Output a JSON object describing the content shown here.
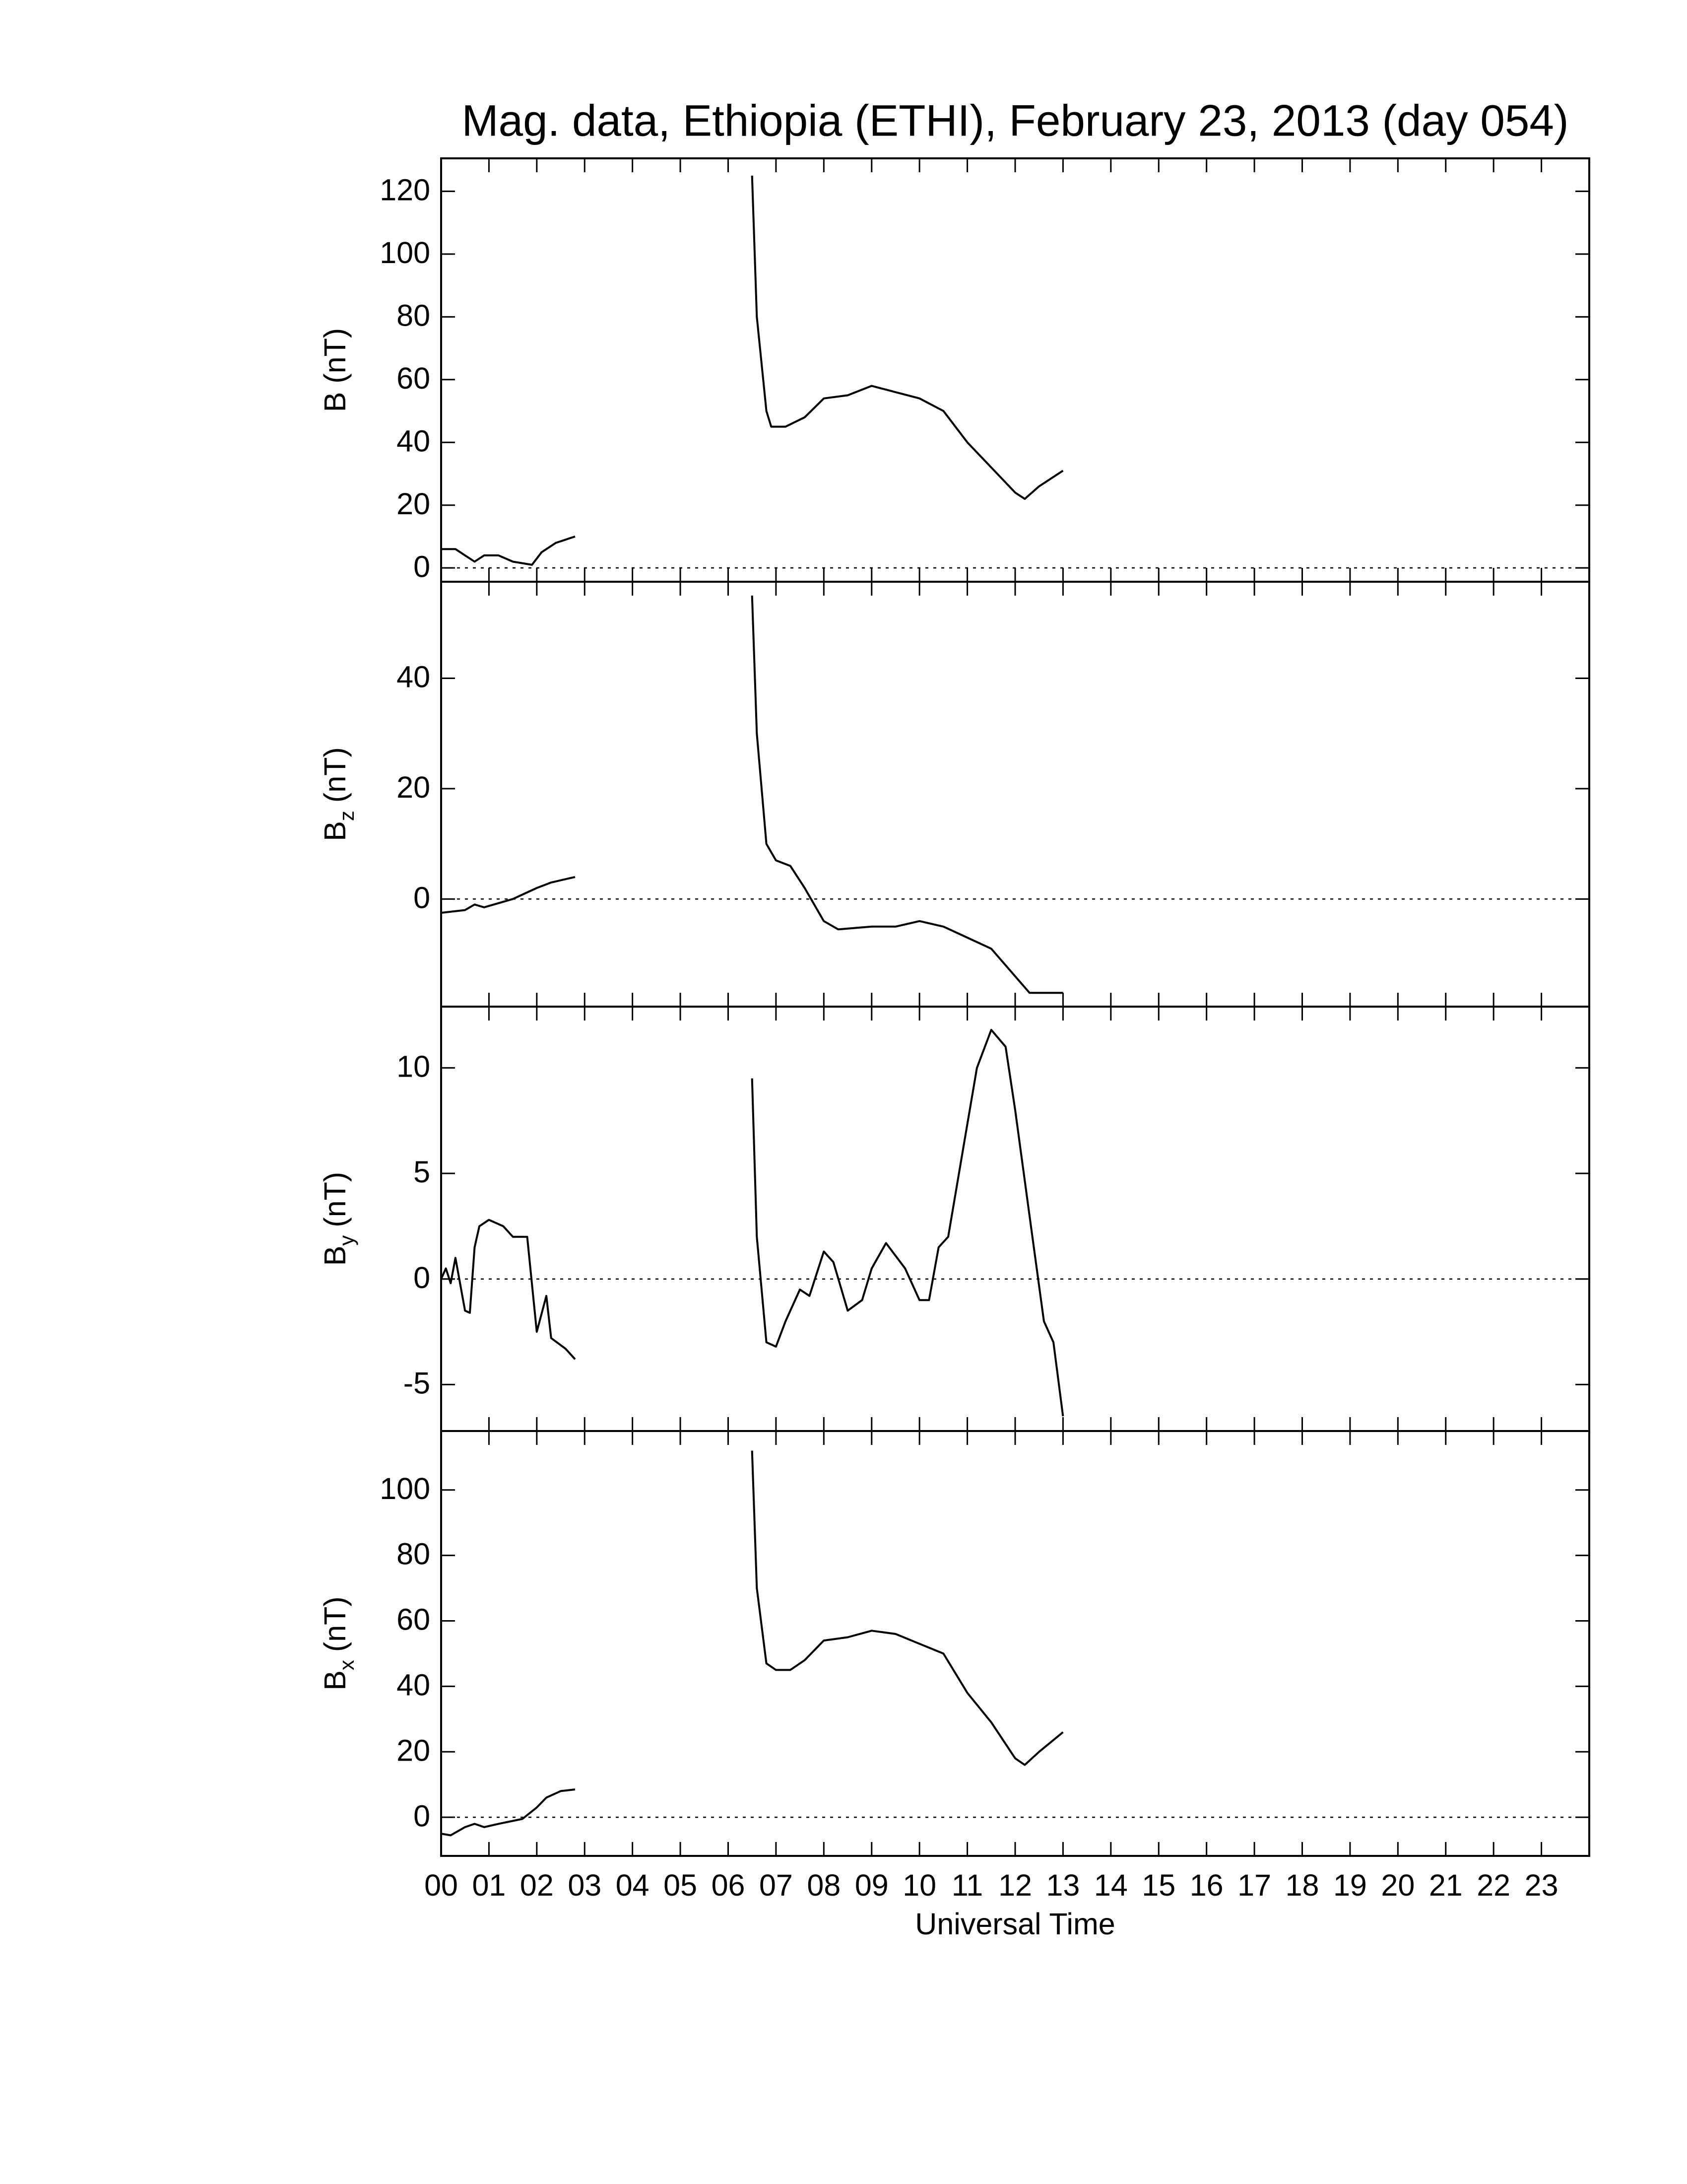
{
  "chart_data": [
    {
      "type": "line",
      "title": "Mag. data, Ethiopia (ETHI), February 23, 2013 (day 054)",
      "ylabel": "B (nT)",
      "color": "#000000",
      "zero_line": true,
      "xlim": [
        0,
        24
      ],
      "ylim": [
        -4.4,
        130.5
      ],
      "yticks": [
        0,
        20,
        40,
        60,
        80,
        100,
        120
      ],
      "x": [
        0,
        0.3,
        0.5,
        0.7,
        0.9,
        1.2,
        1.5,
        1.9,
        2.1,
        2.4,
        2.8,
        4,
        6.5,
        6.6,
        6.8,
        6.9,
        7.2,
        7.6,
        8.0,
        8.5,
        9.0,
        9.5,
        10.0,
        10.5,
        11.0,
        11.5,
        12.0,
        12.2,
        12.5,
        13.0
      ],
      "values": [
        6,
        6,
        4,
        2,
        4,
        4,
        2,
        1,
        5,
        8,
        10,
        null,
        125,
        80,
        50,
        45,
        45,
        48,
        54,
        55,
        58,
        56,
        54,
        50,
        40,
        32,
        24,
        22,
        26,
        31
      ]
    },
    {
      "type": "line",
      "ylabel": "B",
      "ylabel_sub": "z",
      "ylabel_unit": "(nT)",
      "color": "#000000",
      "zero_line": true,
      "xlim": [
        0,
        24
      ],
      "ylim": [
        -19.5,
        57.5
      ],
      "yticks": [
        0,
        20,
        40
      ],
      "x": [
        0,
        0.5,
        0.7,
        0.9,
        1.5,
        2.0,
        2.3,
        2.8,
        4,
        6.5,
        6.6,
        6.8,
        7.0,
        7.3,
        7.6,
        8.0,
        8.3,
        9.0,
        9.5,
        10.0,
        10.5,
        11.0,
        11.5,
        12.0,
        12.3,
        13.0
      ],
      "values": [
        -2.5,
        -2,
        -1,
        -1.5,
        0,
        2,
        3,
        4,
        null,
        55,
        30,
        10,
        7,
        6,
        2,
        -4,
        -5.5,
        -5,
        -5,
        -4,
        -5,
        -7,
        -9,
        -14,
        -17,
        -17
      ]
    },
    {
      "type": "line",
      "ylabel": "B",
      "ylabel_sub": "y",
      "ylabel_unit": "(nT)",
      "color": "#000000",
      "zero_line": true,
      "xlim": [
        0,
        24
      ],
      "ylim": [
        -7.2,
        12.9
      ],
      "yticks": [
        -5,
        0,
        5,
        10
      ],
      "x": [
        0,
        0.1,
        0.2,
        0.3,
        0.5,
        0.6,
        0.7,
        0.8,
        1.0,
        1.3,
        1.5,
        1.8,
        2.0,
        2.2,
        2.3,
        2.6,
        2.8,
        4,
        6.5,
        6.6,
        6.8,
        7.0,
        7.2,
        7.5,
        7.7,
        8.0,
        8.2,
        8.5,
        8.8,
        9.0,
        9.3,
        9.7,
        10.0,
        10.2,
        10.4,
        10.6,
        10.9,
        11.2,
        11.5,
        11.8,
        12.0,
        12.3,
        12.6,
        12.8,
        13.0
      ],
      "values": [
        0,
        0.5,
        -0.2,
        1,
        -1.5,
        -1.6,
        1.5,
        2.5,
        2.8,
        2.5,
        2,
        2,
        -2.5,
        -0.8,
        -2.8,
        -3.3,
        -3.8,
        null,
        9.5,
        2,
        -3,
        -3.2,
        -2,
        -0.5,
        -0.8,
        1.3,
        0.8,
        -1.5,
        -1,
        0.5,
        1.7,
        0.5,
        -1,
        -1,
        1.5,
        2,
        6,
        10,
        11.8,
        11,
        8,
        3,
        -2,
        -3,
        -6.5
      ]
    },
    {
      "type": "line",
      "ylabel": "B",
      "ylabel_sub": "x",
      "ylabel_unit": "(nT)",
      "xlabel": "Universal Time",
      "color": "#000000",
      "zero_line": true,
      "xlim": [
        0,
        24
      ],
      "ylim": [
        -11.8,
        118
      ],
      "yticks": [
        0,
        20,
        40,
        60,
        80,
        100
      ],
      "xticks": [
        {
          "value": 0,
          "label": "00"
        },
        {
          "value": 1,
          "label": "01"
        },
        {
          "value": 2,
          "label": "02"
        },
        {
          "value": 3,
          "label": "03"
        },
        {
          "value": 4,
          "label": "04"
        },
        {
          "value": 5,
          "label": "05"
        },
        {
          "value": 6,
          "label": "06"
        },
        {
          "value": 7,
          "label": "07"
        },
        {
          "value": 8,
          "label": "08"
        },
        {
          "value": 9,
          "label": "09"
        },
        {
          "value": 10,
          "label": "10"
        },
        {
          "value": 11,
          "label": "11"
        },
        {
          "value": 12,
          "label": "12"
        },
        {
          "value": 13,
          "label": "13"
        },
        {
          "value": 14,
          "label": "14"
        },
        {
          "value": 15,
          "label": "15"
        },
        {
          "value": 16,
          "label": "16"
        },
        {
          "value": 17,
          "label": "17"
        },
        {
          "value": 18,
          "label": "18"
        },
        {
          "value": 19,
          "label": "19"
        },
        {
          "value": 20,
          "label": "20"
        },
        {
          "value": 21,
          "label": "21"
        },
        {
          "value": 22,
          "label": "22"
        },
        {
          "value": 23,
          "label": "23"
        }
      ],
      "x": [
        0,
        0.2,
        0.5,
        0.7,
        0.9,
        1.2,
        1.7,
        2.0,
        2.2,
        2.5,
        2.8,
        4,
        6.5,
        6.6,
        6.8,
        7.0,
        7.3,
        7.6,
        8.0,
        8.5,
        9.0,
        9.5,
        10.0,
        10.5,
        11.0,
        11.5,
        12.0,
        12.2,
        12.5,
        13.0
      ],
      "values": [
        -5,
        -5.5,
        -3,
        -2,
        -3,
        -2,
        -0.5,
        3,
        6,
        8,
        8.5,
        null,
        112,
        70,
        47,
        45,
        45,
        48,
        54,
        55,
        57,
        56,
        53,
        50,
        38,
        29,
        18,
        16,
        20,
        26
      ]
    }
  ]
}
